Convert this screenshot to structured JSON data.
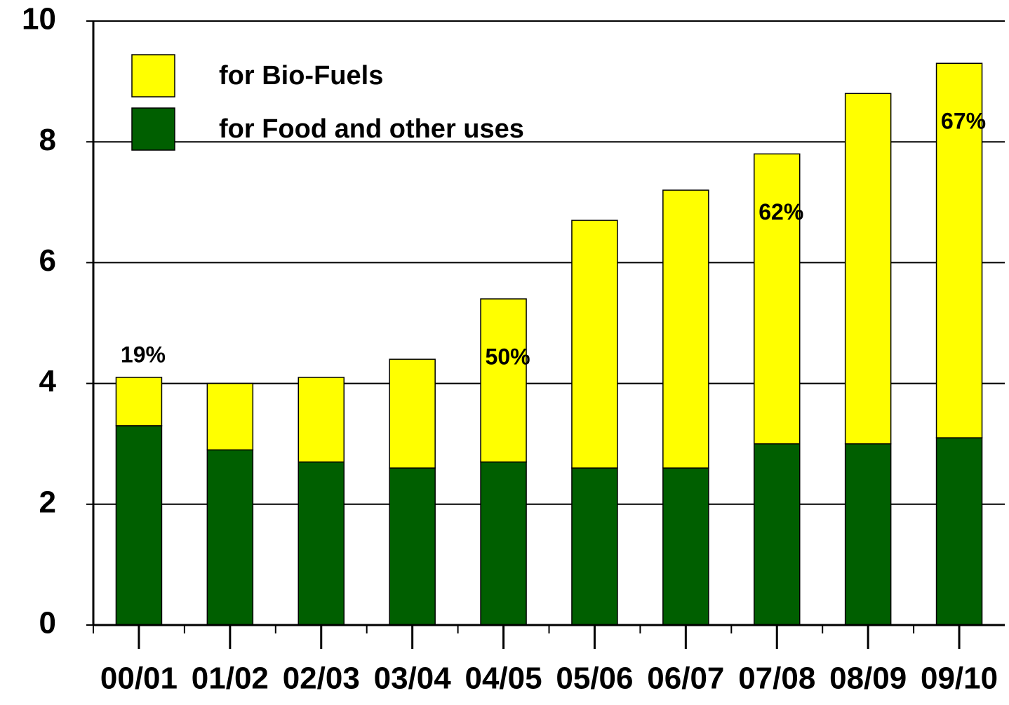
{
  "chart_data": {
    "type": "stacked_bar",
    "categories": [
      "00/01",
      "01/02",
      "02/03",
      "03/04",
      "04/05",
      "05/06",
      "06/07",
      "07/08",
      "08/09",
      "09/10"
    ],
    "series": [
      {
        "name": "for Bio-Fuels",
        "color": "#ffff00",
        "values": [
          0.8,
          1.1,
          1.4,
          1.8,
          2.7,
          4.1,
          4.6,
          4.8,
          5.8,
          6.2
        ]
      },
      {
        "name": "for Food and other uses",
        "color": "#005f00",
        "values": [
          3.3,
          2.9,
          2.7,
          2.6,
          2.7,
          2.6,
          2.6,
          3.0,
          3.0,
          3.1
        ]
      }
    ],
    "annotations": [
      {
        "x": "00/01",
        "text": "19%"
      },
      {
        "x": "04/05",
        "text": "50%"
      },
      {
        "x": "07/08",
        "text": "62%"
      },
      {
        "x": "09/10",
        "text": "67%"
      }
    ],
    "ylim": [
      0,
      10
    ],
    "yticks": [
      0,
      2,
      4,
      6,
      8,
      10
    ],
    "grid": true,
    "legend": "top-left"
  }
}
